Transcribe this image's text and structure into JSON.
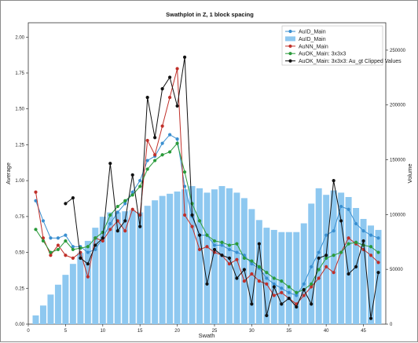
{
  "chart_data": {
    "type": "bar+line",
    "title": "Swathplot in Z, 1 block spacing",
    "xlabel": "Swath",
    "ylabel": "Average",
    "y2label": "Volume",
    "xlim": [
      0,
      48
    ],
    "ylim": [
      0,
      2.1
    ],
    "y2lim": [
      0,
      275000
    ],
    "x_ticks": [
      "0",
      "5",
      "10",
      "15",
      "20",
      "25",
      "30",
      "35",
      "40",
      "45"
    ],
    "y_ticks": [
      "0.00",
      "0.25",
      "0.50",
      "0.75",
      "1.00",
      "1.25",
      "1.50",
      "1.75",
      "2.00"
    ],
    "y2_ticks": [
      "0",
      "50000",
      "100000",
      "150000",
      "200000",
      "250000"
    ],
    "legend_position": "top-right",
    "legend": [
      "AuID_Main",
      "AuID_Main",
      "AuNN_Main",
      "AuOK_Main: 3x3x3",
      "AuOK_Main: 3x3x3: Au_gt Clipped Values"
    ],
    "volume_bars": {
      "name": "AuID_Main",
      "color": "#8ec8f0",
      "x": [
        1,
        2,
        3,
        4,
        5,
        6,
        7,
        8,
        9,
        10,
        11,
        12,
        13,
        14,
        15,
        16,
        17,
        18,
        19,
        20,
        21,
        22,
        23,
        24,
        25,
        26,
        27,
        28,
        29,
        30,
        31,
        32,
        33,
        34,
        35,
        36,
        37,
        38,
        39,
        40,
        41,
        42,
        43,
        44,
        45,
        46,
        47
      ],
      "values": [
        8000,
        17000,
        27000,
        36000,
        45000,
        55000,
        65000,
        76000,
        88000,
        98000,
        102000,
        102000,
        103000,
        104000,
        102000,
        108000,
        113000,
        117000,
        119000,
        121000,
        123000,
        126000,
        124000,
        120000,
        123000,
        126000,
        124000,
        120000,
        115000,
        105000,
        95000,
        88000,
        86000,
        84000,
        84000,
        84000,
        92000,
        110000,
        124000,
        118000,
        122000,
        120000,
        116000,
        106000,
        96000,
        90000,
        86000
      ]
    },
    "series": [
      {
        "name": "AuID_Main",
        "color": "#3a8fd0",
        "x": [
          1,
          2,
          3,
          4,
          5,
          6,
          7,
          8,
          9,
          10,
          11,
          12,
          13,
          14,
          15,
          16,
          17,
          18,
          19,
          20,
          21,
          22,
          23,
          24,
          25,
          26,
          27,
          28,
          29,
          30,
          31,
          32,
          33,
          34,
          35,
          36,
          37,
          38,
          39,
          40,
          41,
          42,
          43,
          44,
          45,
          46,
          47
        ],
        "values": [
          0.86,
          0.72,
          0.6,
          0.6,
          0.62,
          0.54,
          0.54,
          0.5,
          0.52,
          0.6,
          0.7,
          0.78,
          0.84,
          0.92,
          1.0,
          1.14,
          1.17,
          1.26,
          1.32,
          1.29,
          0.96,
          0.75,
          0.62,
          0.62,
          0.55,
          0.55,
          0.52,
          0.5,
          0.48,
          0.42,
          0.39,
          0.32,
          0.28,
          0.25,
          0.22,
          0.2,
          0.28,
          0.4,
          0.5,
          0.62,
          0.65,
          0.82,
          0.8,
          0.7,
          0.65,
          0.62,
          0.6
        ]
      },
      {
        "name": "AuNN_Main",
        "color": "#c0302a",
        "x": [
          1,
          2,
          3,
          4,
          5,
          6,
          7,
          8,
          9,
          10,
          11,
          12,
          13,
          14,
          15,
          16,
          17,
          18,
          19,
          20,
          21,
          22,
          23,
          24,
          25,
          26,
          27,
          28,
          29,
          30,
          31,
          32,
          33,
          34,
          35,
          36,
          37,
          38,
          39,
          40,
          41,
          42,
          43,
          44,
          45,
          46,
          47
        ],
        "values": [
          0.92,
          0.6,
          0.48,
          0.55,
          0.48,
          0.46,
          0.5,
          0.33,
          0.6,
          0.58,
          0.66,
          0.72,
          0.65,
          0.8,
          0.76,
          1.28,
          1.18,
          1.38,
          1.58,
          1.78,
          0.76,
          0.68,
          0.52,
          0.54,
          0.5,
          0.48,
          0.42,
          0.45,
          0.3,
          0.35,
          0.3,
          0.28,
          0.2,
          0.22,
          0.18,
          0.14,
          0.2,
          0.26,
          0.32,
          0.4,
          0.36,
          0.5,
          0.6,
          0.56,
          0.52,
          0.48,
          0.43
        ]
      },
      {
        "name": "AuOK_Main: 3x3x3",
        "color": "#2a9a3a",
        "x": [
          1,
          2,
          3,
          4,
          5,
          6,
          7,
          8,
          9,
          10,
          11,
          12,
          13,
          14,
          15,
          16,
          17,
          18,
          19,
          20,
          21,
          22,
          23,
          24,
          25,
          26,
          27,
          28,
          29,
          30,
          31,
          32,
          33,
          34,
          35,
          36,
          37,
          38,
          39,
          40,
          41,
          42,
          43,
          44,
          45,
          46,
          47
        ],
        "values": [
          0.66,
          0.58,
          0.5,
          0.52,
          0.58,
          0.52,
          0.53,
          0.54,
          0.6,
          0.64,
          0.76,
          0.82,
          0.86,
          0.9,
          0.96,
          1.08,
          1.14,
          1.18,
          1.2,
          1.26,
          1.06,
          0.84,
          0.72,
          0.62,
          0.58,
          0.57,
          0.55,
          0.56,
          0.46,
          0.44,
          0.4,
          0.36,
          0.32,
          0.3,
          0.26,
          0.22,
          0.24,
          0.28,
          0.38,
          0.46,
          0.48,
          0.5,
          0.56,
          0.57,
          0.55,
          0.54,
          0.5
        ]
      },
      {
        "name": "AuOK_Main: 3x3x3: Au_gt Clipped Values",
        "color": "#111111",
        "x": [
          5,
          6,
          7,
          8,
          9,
          10,
          11,
          12,
          13,
          14,
          15,
          16,
          17,
          18,
          19,
          20,
          21,
          22,
          23,
          24,
          25,
          26,
          27,
          28,
          29,
          30,
          31,
          32,
          33,
          34,
          35,
          36,
          37,
          38,
          39,
          40,
          41,
          42,
          43,
          44,
          45,
          46,
          47
        ],
        "values": [
          0.84,
          0.88,
          0.46,
          0.42,
          0.55,
          0.6,
          1.12,
          0.65,
          0.72,
          1.04,
          0.68,
          1.58,
          1.3,
          1.64,
          1.72,
          1.52,
          1.86,
          0.76,
          0.62,
          0.28,
          0.52,
          0.48,
          0.46,
          0.32,
          0.38,
          0.14,
          0.56,
          0.06,
          0.26,
          0.14,
          0.18,
          0.12,
          0.24,
          0.14,
          0.46,
          0.48,
          1.0,
          0.72,
          0.35,
          0.4,
          0.58,
          0.04,
          0.36
        ]
      }
    ]
  }
}
